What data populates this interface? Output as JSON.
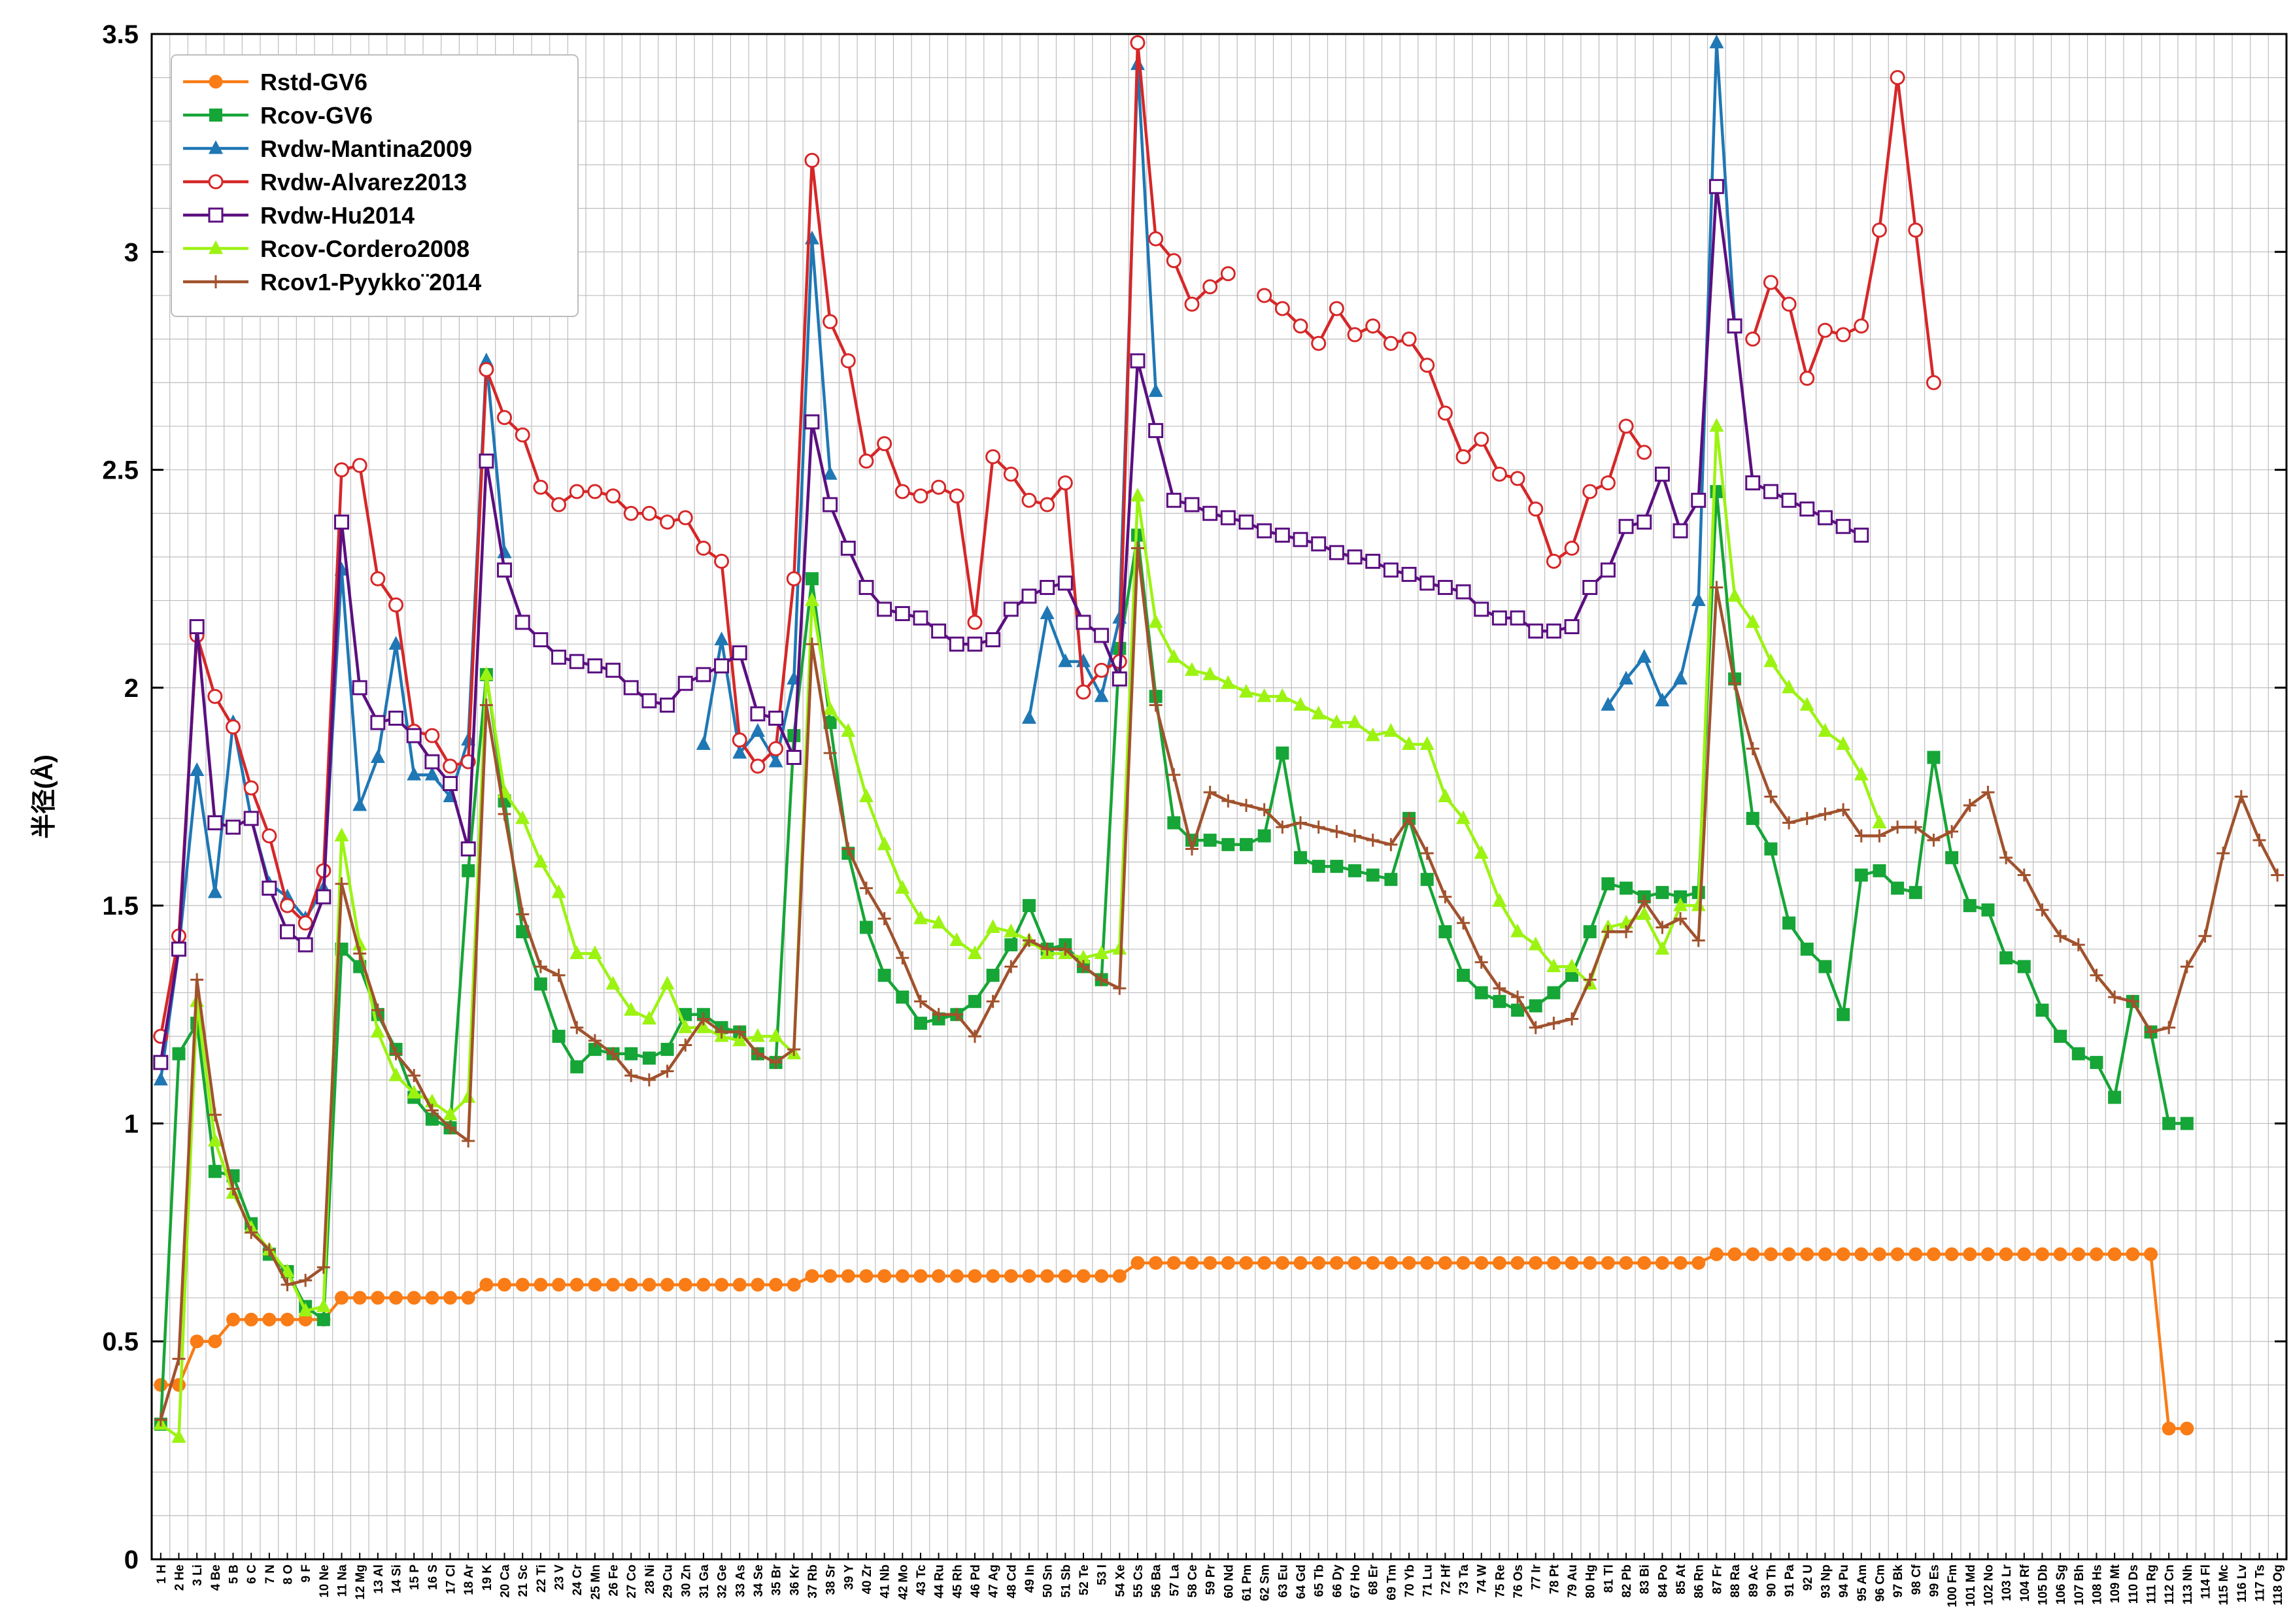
{
  "chart_data": {
    "type": "line",
    "title": "",
    "xlabel": "",
    "ylabel": "半径(Å)",
    "ylim": [
      0,
      3.5
    ],
    "yticks": [
      "0",
      "0.5",
      "1",
      "1.5",
      "2",
      "2.5",
      "3",
      "3.5"
    ],
    "grid": true,
    "legend_placement": "top-left",
    "categories": [
      "1 H",
      "2 He",
      "3 Li",
      "4 Be",
      "5 B",
      "6 C",
      "7 N",
      "8 O",
      "9 F",
      "10 Ne",
      "11 Na",
      "12 Mg",
      "13 Al",
      "14 Si",
      "15 P",
      "16 S",
      "17 Cl",
      "18 Ar",
      "19 K",
      "20 Ca",
      "21 Sc",
      "22 Ti",
      "23 V",
      "24 Cr",
      "25 Mn",
      "26 Fe",
      "27 Co",
      "28 Ni",
      "29 Cu",
      "30 Zn",
      "31 Ga",
      "32 Ge",
      "33 As",
      "34 Se",
      "35 Br",
      "36 Kr",
      "37 Rb",
      "38 Sr",
      "39 Y",
      "40 Zr",
      "41 Nb",
      "42 Mo",
      "43 Tc",
      "44 Ru",
      "45 Rh",
      "46 Pd",
      "47 Ag",
      "48 Cd",
      "49 In",
      "50 Sn",
      "51 Sb",
      "52 Te",
      "53 I",
      "54 Xe",
      "55 Cs",
      "56 Ba",
      "57 La",
      "58 Ce",
      "59 Pr",
      "60 Nd",
      "61 Pm",
      "62 Sm",
      "63 Eu",
      "64 Gd",
      "65 Tb",
      "66 Dy",
      "67 Ho",
      "68 Er",
      "69 Tm",
      "70 Yb",
      "71 Lu",
      "72 Hf",
      "73 Ta",
      "74 W",
      "75 Re",
      "76 Os",
      "77 Ir",
      "78 Pt",
      "79 Au",
      "80 Hg",
      "81 Tl",
      "82 Pb",
      "83 Bi",
      "84 Po",
      "85 At",
      "86 Rn",
      "87 Fr",
      "88 Ra",
      "89 Ac",
      "90 Th",
      "91 Pa",
      "92 U",
      "93 Np",
      "94 Pu",
      "95 Am",
      "96 Cm",
      "97 Bk",
      "98 Cf",
      "99 Es",
      "100 Fm",
      "101 Md",
      "102 No",
      "103 Lr",
      "104 Rf",
      "105 Db",
      "106 Sg",
      "107 Bh",
      "108 Hs",
      "109 Mt",
      "110 Ds",
      "111 Rg",
      "112 Cn",
      "113 Nh",
      "114 Fl",
      "115 Mc",
      "116 Lv",
      "117 Ts",
      "118 Og"
    ],
    "series": [
      {
        "name": "Rstd-GV6",
        "color": "#f97c16",
        "marker": "filled-circle",
        "values": [
          0.4,
          0.4,
          0.5,
          0.5,
          0.55,
          0.55,
          0.55,
          0.55,
          0.55,
          0.55,
          0.6,
          0.6,
          0.6,
          0.6,
          0.6,
          0.6,
          0.6,
          0.6,
          0.63,
          0.63,
          0.63,
          0.63,
          0.63,
          0.63,
          0.63,
          0.63,
          0.63,
          0.63,
          0.63,
          0.63,
          0.63,
          0.63,
          0.63,
          0.63,
          0.63,
          0.63,
          0.65,
          0.65,
          0.65,
          0.65,
          0.65,
          0.65,
          0.65,
          0.65,
          0.65,
          0.65,
          0.65,
          0.65,
          0.65,
          0.65,
          0.65,
          0.65,
          0.65,
          0.65,
          0.68,
          0.68,
          0.68,
          0.68,
          0.68,
          0.68,
          0.68,
          0.68,
          0.68,
          0.68,
          0.68,
          0.68,
          0.68,
          0.68,
          0.68,
          0.68,
          0.68,
          0.68,
          0.68,
          0.68,
          0.68,
          0.68,
          0.68,
          0.68,
          0.68,
          0.68,
          0.68,
          0.68,
          0.68,
          0.68,
          0.68,
          0.68,
          0.7,
          0.7,
          0.7,
          0.7,
          0.7,
          0.7,
          0.7,
          0.7,
          0.7,
          0.7,
          0.7,
          0.7,
          0.7,
          0.7,
          0.7,
          0.7,
          0.7,
          0.7,
          0.7,
          0.7,
          0.7,
          0.7,
          0.7,
          0.7,
          0.7,
          0.3,
          0.3,
          null,
          null,
          null,
          null,
          null
        ]
      },
      {
        "name": "Rcov-GV6",
        "color": "#16a537",
        "marker": "filled-square",
        "values": [
          0.31,
          1.16,
          1.23,
          0.89,
          0.88,
          0.77,
          0.7,
          0.66,
          0.58,
          0.55,
          1.4,
          1.36,
          1.25,
          1.17,
          1.06,
          1.01,
          0.99,
          1.58,
          2.03,
          1.74,
          1.44,
          1.32,
          1.2,
          1.13,
          1.17,
          1.16,
          1.16,
          1.15,
          1.17,
          1.25,
          1.25,
          1.22,
          1.21,
          1.16,
          1.14,
          1.89,
          2.25,
          1.92,
          1.62,
          1.45,
          1.34,
          1.29,
          1.23,
          1.24,
          1.25,
          1.28,
          1.34,
          1.41,
          1.5,
          1.4,
          1.41,
          1.36,
          1.33,
          2.09,
          2.35,
          1.98,
          1.69,
          1.65,
          1.65,
          1.64,
          1.64,
          1.66,
          1.85,
          1.61,
          1.59,
          1.59,
          1.58,
          1.57,
          1.56,
          1.7,
          1.56,
          1.44,
          1.34,
          1.3,
          1.28,
          1.26,
          1.27,
          1.3,
          1.34,
          1.44,
          1.55,
          1.54,
          1.52,
          1.53,
          1.52,
          1.53,
          2.45,
          2.02,
          1.7,
          1.63,
          1.46,
          1.4,
          1.36,
          1.25,
          1.57,
          1.58,
          1.54,
          1.53,
          1.84,
          1.61,
          1.5,
          1.49,
          1.38,
          1.36,
          1.26,
          1.2,
          1.16,
          1.14,
          1.06,
          1.28,
          1.21,
          1.0,
          1.0,
          null,
          null,
          null,
          null,
          null
        ]
      },
      {
        "name": "Rvdw-Mantina2009",
        "color": "#1f77b4",
        "marker": "filled-triangle",
        "values": [
          1.1,
          1.4,
          1.81,
          1.53,
          1.92,
          1.7,
          1.55,
          1.52,
          1.47,
          1.54,
          2.27,
          1.73,
          1.84,
          2.1,
          1.8,
          1.8,
          1.75,
          1.88,
          2.75,
          2.31,
          null,
          null,
          null,
          null,
          null,
          null,
          null,
          null,
          null,
          null,
          1.87,
          2.11,
          1.85,
          1.9,
          1.83,
          2.02,
          3.03,
          2.49,
          null,
          null,
          null,
          null,
          null,
          null,
          null,
          null,
          null,
          null,
          1.93,
          2.17,
          2.06,
          2.06,
          1.98,
          2.16,
          3.43,
          2.68,
          null,
          null,
          null,
          null,
          null,
          null,
          null,
          null,
          null,
          null,
          null,
          null,
          null,
          null,
          null,
          null,
          null,
          null,
          null,
          null,
          null,
          null,
          null,
          null,
          1.96,
          2.02,
          2.07,
          1.97,
          2.02,
          2.2,
          3.48,
          2.83,
          null,
          null,
          null,
          null,
          null,
          null,
          null,
          null,
          null,
          null,
          null,
          null,
          null,
          null,
          null,
          null,
          null,
          null,
          null,
          null,
          null,
          null,
          null,
          null,
          null,
          null,
          null,
          null,
          null,
          null
        ]
      },
      {
        "name": "Rvdw-Alvarez2013",
        "color": "#d62728",
        "marker": "open-circle",
        "values": [
          1.2,
          1.43,
          2.12,
          1.98,
          1.91,
          1.77,
          1.66,
          1.5,
          1.46,
          1.58,
          2.5,
          2.51,
          2.25,
          2.19,
          1.9,
          1.89,
          1.82,
          1.83,
          2.73,
          2.62,
          2.58,
          2.46,
          2.42,
          2.45,
          2.45,
          2.44,
          2.4,
          2.4,
          2.38,
          2.39,
          2.32,
          2.29,
          1.88,
          1.82,
          1.86,
          2.25,
          3.21,
          2.84,
          2.75,
          2.52,
          2.56,
          2.45,
          2.44,
          2.46,
          2.44,
          2.15,
          2.53,
          2.49,
          2.43,
          2.42,
          2.47,
          1.99,
          2.04,
          2.06,
          3.48,
          3.03,
          2.98,
          2.88,
          2.92,
          2.95,
          null,
          2.9,
          2.87,
          2.83,
          2.79,
          2.87,
          2.81,
          2.83,
          2.79,
          2.8,
          2.74,
          2.63,
          2.53,
          2.57,
          2.49,
          2.48,
          2.41,
          2.29,
          2.32,
          2.45,
          2.47,
          2.6,
          2.54,
          null,
          null,
          null,
          null,
          null,
          2.8,
          2.93,
          2.88,
          2.71,
          2.82,
          2.81,
          2.83,
          3.05,
          3.4,
          3.05,
          2.7,
          null,
          null,
          null,
          null,
          null,
          null,
          null,
          null,
          null,
          null,
          null,
          null,
          null,
          null,
          null,
          null,
          null,
          null,
          null
        ]
      },
      {
        "name": "Rvdw-Hu2014",
        "color": "#5b0f80",
        "marker": "open-square",
        "values": [
          1.14,
          1.4,
          2.14,
          1.69,
          1.68,
          1.7,
          1.54,
          1.44,
          1.41,
          1.52,
          2.38,
          2.0,
          1.92,
          1.93,
          1.89,
          1.83,
          1.78,
          1.63,
          2.52,
          2.27,
          2.15,
          2.11,
          2.07,
          2.06,
          2.05,
          2.04,
          2.0,
          1.97,
          1.96,
          2.01,
          2.03,
          2.05,
          2.08,
          1.94,
          1.93,
          1.84,
          2.61,
          2.42,
          2.32,
          2.23,
          2.18,
          2.17,
          2.16,
          2.13,
          2.1,
          2.1,
          2.11,
          2.18,
          2.21,
          2.23,
          2.24,
          2.15,
          2.12,
          2.02,
          2.75,
          2.59,
          2.43,
          2.42,
          2.4,
          2.39,
          2.38,
          2.36,
          2.35,
          2.34,
          2.33,
          2.31,
          2.3,
          2.29,
          2.27,
          2.26,
          2.24,
          2.23,
          2.22,
          2.18,
          2.16,
          2.16,
          2.13,
          2.13,
          2.14,
          2.23,
          2.27,
          2.37,
          2.38,
          2.49,
          2.36,
          2.43,
          3.15,
          2.83,
          2.47,
          2.45,
          2.43,
          2.41,
          2.39,
          2.37,
          2.35,
          null,
          null,
          null,
          null,
          null,
          null,
          null,
          null,
          null,
          null,
          null,
          null,
          null,
          null,
          null,
          null,
          null,
          null,
          null,
          null,
          null,
          null,
          null
        ]
      },
      {
        "name": "Rcov-Cordero2008",
        "color": "#9cf312",
        "marker": "filled-triangle",
        "values": [
          0.31,
          0.28,
          1.28,
          0.96,
          0.84,
          0.76,
          0.71,
          0.66,
          0.57,
          0.58,
          1.66,
          1.41,
          1.21,
          1.11,
          1.07,
          1.05,
          1.02,
          1.06,
          2.03,
          1.76,
          1.7,
          1.6,
          1.53,
          1.39,
          1.39,
          1.32,
          1.26,
          1.24,
          1.32,
          1.22,
          1.22,
          1.2,
          1.19,
          1.2,
          1.2,
          1.16,
          2.2,
          1.95,
          1.9,
          1.75,
          1.64,
          1.54,
          1.47,
          1.46,
          1.42,
          1.39,
          1.45,
          1.44,
          1.42,
          1.39,
          1.39,
          1.38,
          1.39,
          1.4,
          2.44,
          2.15,
          2.07,
          2.04,
          2.03,
          2.01,
          1.99,
          1.98,
          1.98,
          1.96,
          1.94,
          1.92,
          1.92,
          1.89,
          1.9,
          1.87,
          1.87,
          1.75,
          1.7,
          1.62,
          1.51,
          1.44,
          1.41,
          1.36,
          1.36,
          1.32,
          1.45,
          1.46,
          1.48,
          1.4,
          1.5,
          1.5,
          2.6,
          2.21,
          2.15,
          2.06,
          2.0,
          1.96,
          1.9,
          1.87,
          1.8,
          1.69,
          null,
          null,
          null,
          null,
          null,
          null,
          null,
          null,
          null,
          null,
          null,
          null,
          null,
          null,
          null,
          null,
          null,
          null,
          null,
          null,
          null,
          null
        ]
      },
      {
        "name": "Rcov1-Pyykko¨2014",
        "color": "#a0522d",
        "marker": "plus",
        "values": [
          0.32,
          0.46,
          1.33,
          1.02,
          0.85,
          0.75,
          0.71,
          0.63,
          0.64,
          0.67,
          1.55,
          1.39,
          1.26,
          1.16,
          1.11,
          1.03,
          0.99,
          0.96,
          1.96,
          1.71,
          1.48,
          1.36,
          1.34,
          1.22,
          1.19,
          1.16,
          1.11,
          1.1,
          1.12,
          1.18,
          1.24,
          1.21,
          1.21,
          1.16,
          1.14,
          1.17,
          2.1,
          1.85,
          1.63,
          1.54,
          1.47,
          1.38,
          1.28,
          1.25,
          1.25,
          1.2,
          1.28,
          1.36,
          1.42,
          1.4,
          1.4,
          1.36,
          1.33,
          1.31,
          2.32,
          1.96,
          1.8,
          1.63,
          1.76,
          1.74,
          1.73,
          1.72,
          1.68,
          1.69,
          1.68,
          1.67,
          1.66,
          1.65,
          1.64,
          1.7,
          1.62,
          1.52,
          1.46,
          1.37,
          1.31,
          1.29,
          1.22,
          1.23,
          1.24,
          1.33,
          1.44,
          1.44,
          1.51,
          1.45,
          1.47,
          1.42,
          2.23,
          2.01,
          1.86,
          1.75,
          1.69,
          1.7,
          1.71,
          1.72,
          1.66,
          1.66,
          1.68,
          1.68,
          1.65,
          1.67,
          1.73,
          1.76,
          1.61,
          1.57,
          1.49,
          1.43,
          1.41,
          1.34,
          1.29,
          1.28,
          1.21,
          1.22,
          1.36,
          1.43,
          1.62,
          1.75,
          1.65,
          1.57
        ]
      }
    ]
  }
}
